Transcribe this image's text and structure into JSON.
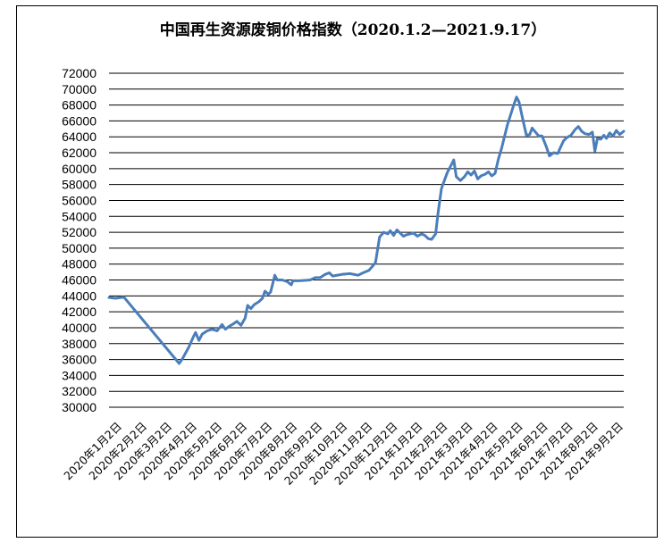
{
  "chart_data": {
    "type": "line",
    "title": "中国再生资源废铜价格指数（2020.1.2—2021.9.17）",
    "xlabel": "",
    "ylabel": "",
    "ylim": [
      30000,
      72000
    ],
    "ytick_step": 2000,
    "grid": "horizontal",
    "x_tick_labels": [
      "2020年1月2日",
      "2020年2月2日",
      "2020年3月2日",
      "2020年4月2日",
      "2020年5月2日",
      "2020年6月2日",
      "2020年7月2日",
      "2020年8月2日",
      "2020年9月2日",
      "2020年10月2日",
      "2020年11月2日",
      "2020年12月2日",
      "2021年1月2日",
      "2021年2月2日",
      "2021年3月2日",
      "2021年4月2日",
      "2021年5月2日",
      "2021年6月2日",
      "2021年7月2日",
      "2021年8月2日",
      "2021年9月2日"
    ],
    "series": [
      {
        "color": "#4a7ebb",
        "points": [
          [
            "2020-01-02",
            43800
          ],
          [
            "2020-01-10",
            43700
          ],
          [
            "2020-01-20",
            43850
          ],
          [
            "2020-03-27",
            35500
          ],
          [
            "2020-03-31",
            36100
          ],
          [
            "2020-04-08",
            37600
          ],
          [
            "2020-04-13",
            38800
          ],
          [
            "2020-04-16",
            39400
          ],
          [
            "2020-04-20",
            38400
          ],
          [
            "2020-04-24",
            39200
          ],
          [
            "2020-04-30",
            39600
          ],
          [
            "2020-05-06",
            39800
          ],
          [
            "2020-05-12",
            39600
          ],
          [
            "2020-05-18",
            40400
          ],
          [
            "2020-05-22",
            39800
          ],
          [
            "2020-05-27",
            40200
          ],
          [
            "2020-06-01",
            40500
          ],
          [
            "2020-06-05",
            40800
          ],
          [
            "2020-06-10",
            40300
          ],
          [
            "2020-06-15",
            41200
          ],
          [
            "2020-06-18",
            42800
          ],
          [
            "2020-06-22",
            42400
          ],
          [
            "2020-06-26",
            42900
          ],
          [
            "2020-07-02",
            43300
          ],
          [
            "2020-07-06",
            43700
          ],
          [
            "2020-07-09",
            44600
          ],
          [
            "2020-07-13",
            44200
          ],
          [
            "2020-07-16",
            44500
          ],
          [
            "2020-07-21",
            46600
          ],
          [
            "2020-07-24",
            46000
          ],
          [
            "2020-07-30",
            46000
          ],
          [
            "2020-08-05",
            45800
          ],
          [
            "2020-08-10",
            45400
          ],
          [
            "2020-08-12",
            45900
          ],
          [
            "2020-08-20",
            45900
          ],
          [
            "2020-09-02",
            46000
          ],
          [
            "2020-09-08",
            46300
          ],
          [
            "2020-09-14",
            46300
          ],
          [
            "2020-09-20",
            46700
          ],
          [
            "2020-09-25",
            46900
          ],
          [
            "2020-09-29",
            46500
          ],
          [
            "2020-10-10",
            46700
          ],
          [
            "2020-10-20",
            46800
          ],
          [
            "2020-10-30",
            46600
          ],
          [
            "2020-11-05",
            46900
          ],
          [
            "2020-11-12",
            47200
          ],
          [
            "2020-11-17",
            47800
          ],
          [
            "2020-11-20",
            48200
          ],
          [
            "2020-11-25",
            51400
          ],
          [
            "2020-11-30",
            52000
          ],
          [
            "2020-12-05",
            51800
          ],
          [
            "2020-12-08",
            52200
          ],
          [
            "2020-12-12",
            51600
          ],
          [
            "2020-12-16",
            52300
          ],
          [
            "2020-12-21",
            51800
          ],
          [
            "2020-12-24",
            51500
          ],
          [
            "2020-12-28",
            51700
          ],
          [
            "2021-01-05",
            51900
          ],
          [
            "2021-01-10",
            51500
          ],
          [
            "2021-01-15",
            51800
          ],
          [
            "2021-01-19",
            51600
          ],
          [
            "2021-01-23",
            51200
          ],
          [
            "2021-01-27",
            51100
          ],
          [
            "2021-02-01",
            51800
          ],
          [
            "2021-02-04",
            54500
          ],
          [
            "2021-02-08",
            57500
          ],
          [
            "2021-02-15",
            59500
          ],
          [
            "2021-02-20",
            60500
          ],
          [
            "2021-02-23",
            61100
          ],
          [
            "2021-02-26",
            59000
          ],
          [
            "2021-03-03",
            58500
          ],
          [
            "2021-03-08",
            59000
          ],
          [
            "2021-03-12",
            59600
          ],
          [
            "2021-03-16",
            59200
          ],
          [
            "2021-03-20",
            59700
          ],
          [
            "2021-03-24",
            58700
          ],
          [
            "2021-03-28",
            59100
          ],
          [
            "2021-04-02",
            59300
          ],
          [
            "2021-04-06",
            59600
          ],
          [
            "2021-04-10",
            59100
          ],
          [
            "2021-04-14",
            59400
          ],
          [
            "2021-04-18",
            61200
          ],
          [
            "2021-04-22",
            62600
          ],
          [
            "2021-04-29",
            65500
          ],
          [
            "2021-05-06",
            67800
          ],
          [
            "2021-05-10",
            69000
          ],
          [
            "2021-05-13",
            68400
          ],
          [
            "2021-05-18",
            66000
          ],
          [
            "2021-05-22",
            64200
          ],
          [
            "2021-05-26",
            64300
          ],
          [
            "2021-05-29",
            65100
          ],
          [
            "2021-06-02",
            64600
          ],
          [
            "2021-06-06",
            64100
          ],
          [
            "2021-06-10",
            64100
          ],
          [
            "2021-06-15",
            62800
          ],
          [
            "2021-06-19",
            61600
          ],
          [
            "2021-06-24",
            62000
          ],
          [
            "2021-06-29",
            61900
          ],
          [
            "2021-07-02",
            62600
          ],
          [
            "2021-07-06",
            63500
          ],
          [
            "2021-07-10",
            63900
          ],
          [
            "2021-07-15",
            64200
          ],
          [
            "2021-07-20",
            64900
          ],
          [
            "2021-07-24",
            65300
          ],
          [
            "2021-07-28",
            64700
          ],
          [
            "2021-08-01",
            64400
          ],
          [
            "2021-08-06",
            64300
          ],
          [
            "2021-08-10",
            64600
          ],
          [
            "2021-08-13",
            62200
          ],
          [
            "2021-08-16",
            63800
          ],
          [
            "2021-08-20",
            63700
          ],
          [
            "2021-08-24",
            64200
          ],
          [
            "2021-08-27",
            63800
          ],
          [
            "2021-08-31",
            64500
          ],
          [
            "2021-09-04",
            64100
          ],
          [
            "2021-09-08",
            64800
          ],
          [
            "2021-09-12",
            64300
          ],
          [
            "2021-09-17",
            64700
          ]
        ]
      }
    ]
  }
}
